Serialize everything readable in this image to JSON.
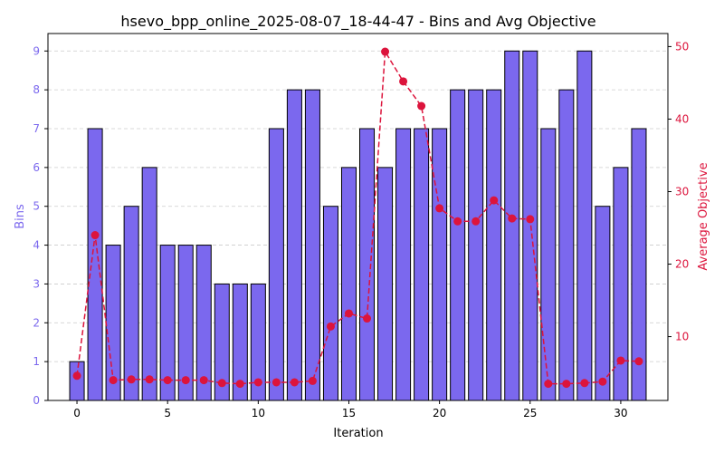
{
  "chart_data": {
    "type": "bar",
    "title": "hsevo_bpp_online_2025-08-07_18-44-47 - Bins and Avg Objective",
    "xlabel": "Iteration",
    "ylabel_left": "Bins",
    "ylabel_right": "Average Objective",
    "xlim": [
      -1.6,
      32.6
    ],
    "ylim_left": [
      0,
      9.45
    ],
    "ylim_right": [
      1.2,
      51.8
    ],
    "x_ticks": [
      0,
      5,
      10,
      15,
      20,
      25,
      30
    ],
    "y_ticks_left": [
      0,
      1,
      2,
      3,
      4,
      5,
      6,
      7,
      8,
      9
    ],
    "y_ticks_right": [
      10,
      20,
      30,
      40,
      50
    ],
    "grid": true,
    "colors": {
      "bars": "#7b68ee",
      "bar_edge": "#000000",
      "line": "#dc143c",
      "left_axis": "#7b68ee",
      "right_axis": "#dc143c",
      "grid": "#cccccc"
    },
    "series": [
      {
        "type": "bar",
        "axis": "left",
        "x": [
          0,
          1,
          2,
          3,
          4,
          5,
          6,
          7,
          8,
          9,
          10,
          11,
          12,
          13,
          14,
          15,
          16,
          17,
          18,
          19,
          20,
          21,
          22,
          23,
          24,
          25,
          26,
          27,
          28,
          29,
          30,
          31
        ],
        "values": [
          1,
          7,
          4,
          5,
          6,
          4,
          4,
          4,
          3,
          3,
          3,
          7,
          8,
          8,
          5,
          6,
          7,
          6,
          7,
          7,
          7,
          8,
          8,
          8,
          9,
          9,
          7,
          8,
          9,
          5,
          6,
          7
        ]
      },
      {
        "type": "line",
        "axis": "right",
        "x": [
          0,
          1,
          2,
          3,
          4,
          5,
          6,
          7,
          8,
          9,
          10,
          11,
          12,
          13,
          14,
          15,
          16,
          17,
          18,
          19,
          20,
          21,
          22,
          23,
          24,
          25,
          26,
          27,
          28,
          29,
          30,
          31
        ],
        "values": [
          4.6,
          24.0,
          4.0,
          4.1,
          4.1,
          4.0,
          4.0,
          4.0,
          3.6,
          3.5,
          3.7,
          3.7,
          3.7,
          3.9,
          11.4,
          13.2,
          12.5,
          49.3,
          45.2,
          41.8,
          27.7,
          25.9,
          25.9,
          28.8,
          26.3,
          26.2,
          3.5,
          3.5,
          3.6,
          3.8,
          6.7,
          6.6
        ]
      }
    ]
  }
}
